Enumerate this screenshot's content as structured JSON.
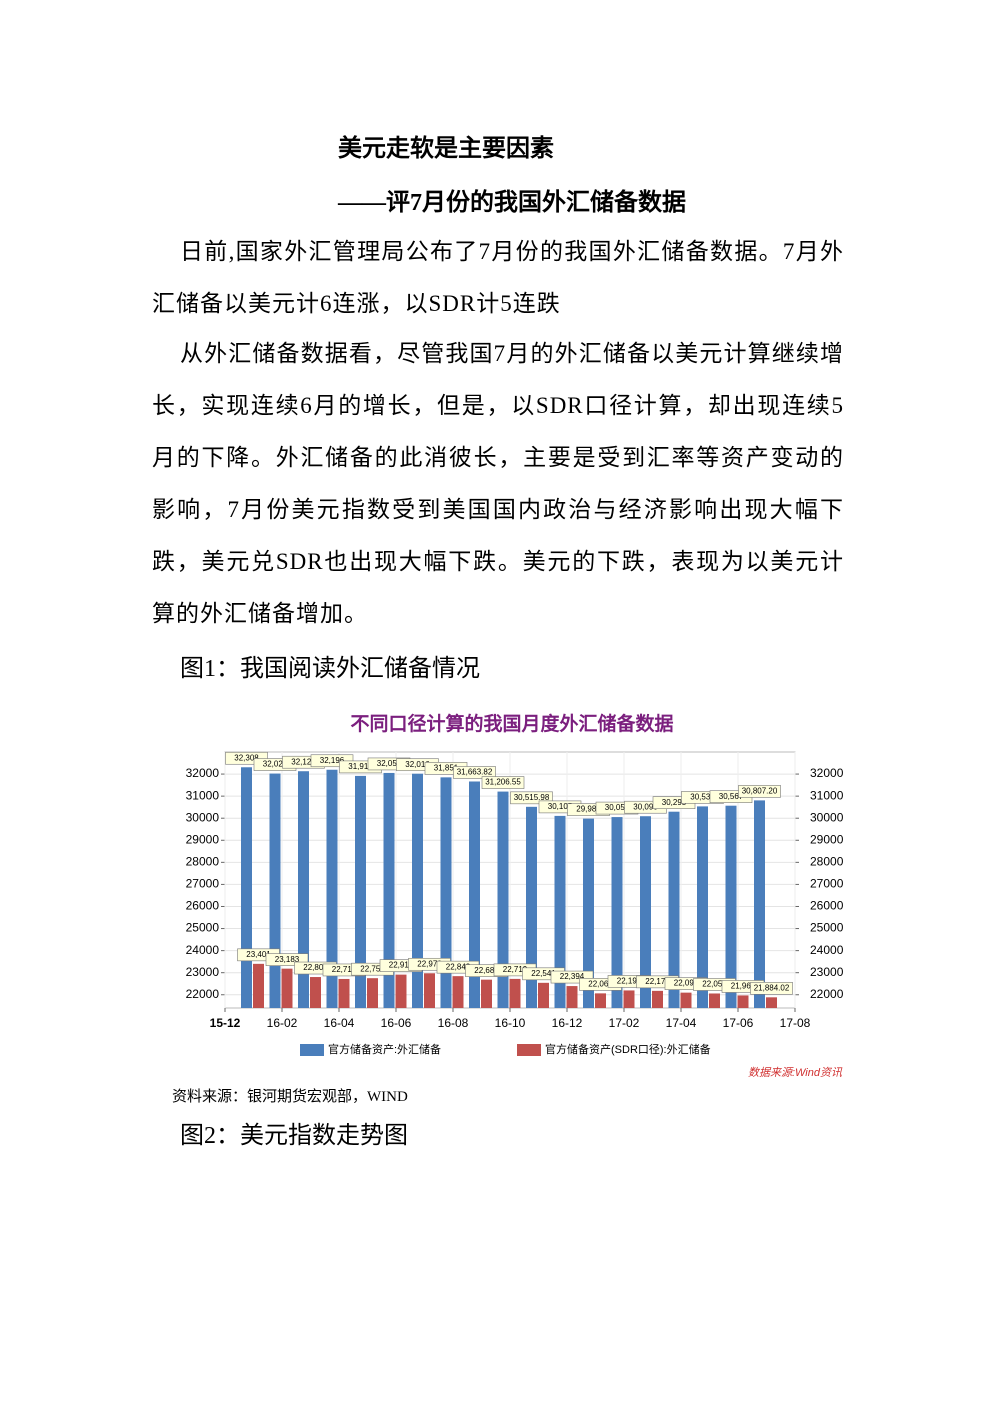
{
  "document": {
    "title": "美元走软是主要因素",
    "subtitle": "——评7月份的我国外汇储备数据",
    "paragraphs": [
      "日前,国家外汇管理局公布了7月份的我国外汇储备数据。7月外汇储备以美元计6连涨，以SDR计5连跌",
      "从外汇储备数据看，尽管我国7月的外汇储备以美元计算继续增长，实现连续6月的增长，但是，以SDR口径计算，却出现连续5月的下降。外汇储备的此消彼长，主要是受到汇率等资产变动的影响，7月份美元指数受到美国国内政治与经济影响出现大幅下跌，美元兑SDR也出现大幅下跌。美元的下跌，表现为以美元计算的外汇储备增加。"
    ],
    "figure1_caption": "图1：我国阅读外汇储备情况",
    "figure1_source": "资料来源：银河期货宏观部，WIND",
    "figure2_caption": "图2：美元指数走势图"
  },
  "chart_data": {
    "type": "bar",
    "title": "不同口径计算的我国月度外汇储备数据",
    "source": "数据来源:Wind资讯",
    "xlim": [
      0,
      20
    ],
    "xticks": [
      {
        "value": 0,
        "label": "15-12"
      },
      {
        "value": 2,
        "label": "16-02"
      },
      {
        "value": 4,
        "label": "16-04"
      },
      {
        "value": 6,
        "label": "16-06"
      },
      {
        "value": 8,
        "label": "16-08"
      },
      {
        "value": 10,
        "label": "16-10"
      },
      {
        "value": 12,
        "label": "16-12"
      },
      {
        "value": 14,
        "label": "17-02"
      },
      {
        "value": 16,
        "label": "17-04"
      },
      {
        "value": 18,
        "label": "17-06"
      },
      {
        "value": 20,
        "label": "17-08"
      }
    ],
    "ylim": [
      21400,
      33000
    ],
    "yticks": [
      22000,
      23000,
      24000,
      25000,
      26000,
      27000,
      28000,
      29000,
      30000,
      31000,
      32000
    ],
    "y2lim": [
      21400,
      33000
    ],
    "y2ticks": [
      22000,
      23000,
      24000,
      25000,
      26000,
      27000,
      28000,
      29000,
      30000,
      31000,
      32000
    ],
    "grid": true,
    "series": [
      {
        "name": "官方储备资产:外汇储备",
        "color": "#4a7ebb",
        "values": [
          32308,
          32023,
          32129,
          32196,
          31917,
          32051,
          32016,
          31851,
          31663.82,
          31206.55,
          30515.98,
          30105,
          29982,
          30051,
          30090,
          30295,
          30535,
          30567,
          30807.2
        ],
        "value_labels": [
          "32,308",
          "32,023",
          "32,129",
          "32,196",
          "31,917",
          "32,051",
          "32,016",
          "31,851",
          "31,663.82",
          "31,206.55",
          "30,515.98",
          "30,105",
          "29,982",
          "30,051",
          "30,090",
          "30,295",
          "30,535",
          "30,567",
          "30,807.20"
        ]
      },
      {
        "name": "官方储备资产(SDR口径):外汇储备",
        "color": "#c0504d",
        "values": [
          23401,
          23183,
          22803,
          22716,
          22751,
          22912,
          22973,
          22843,
          22684,
          22719,
          22541,
          22394,
          22063,
          22196,
          22177,
          22096,
          22058,
          21969,
          21884.02
        ],
        "value_labels": [
          "23,401",
          "23,183",
          "22,803",
          "22,716",
          "22,751",
          "22,912",
          "22,973",
          "22,843",
          "22,684",
          "22,719",
          "22,541",
          "22,394",
          "22,063",
          "22,196",
          "22,177",
          "22,096",
          "22,058",
          "21,969",
          "21,884.02"
        ]
      }
    ]
  }
}
